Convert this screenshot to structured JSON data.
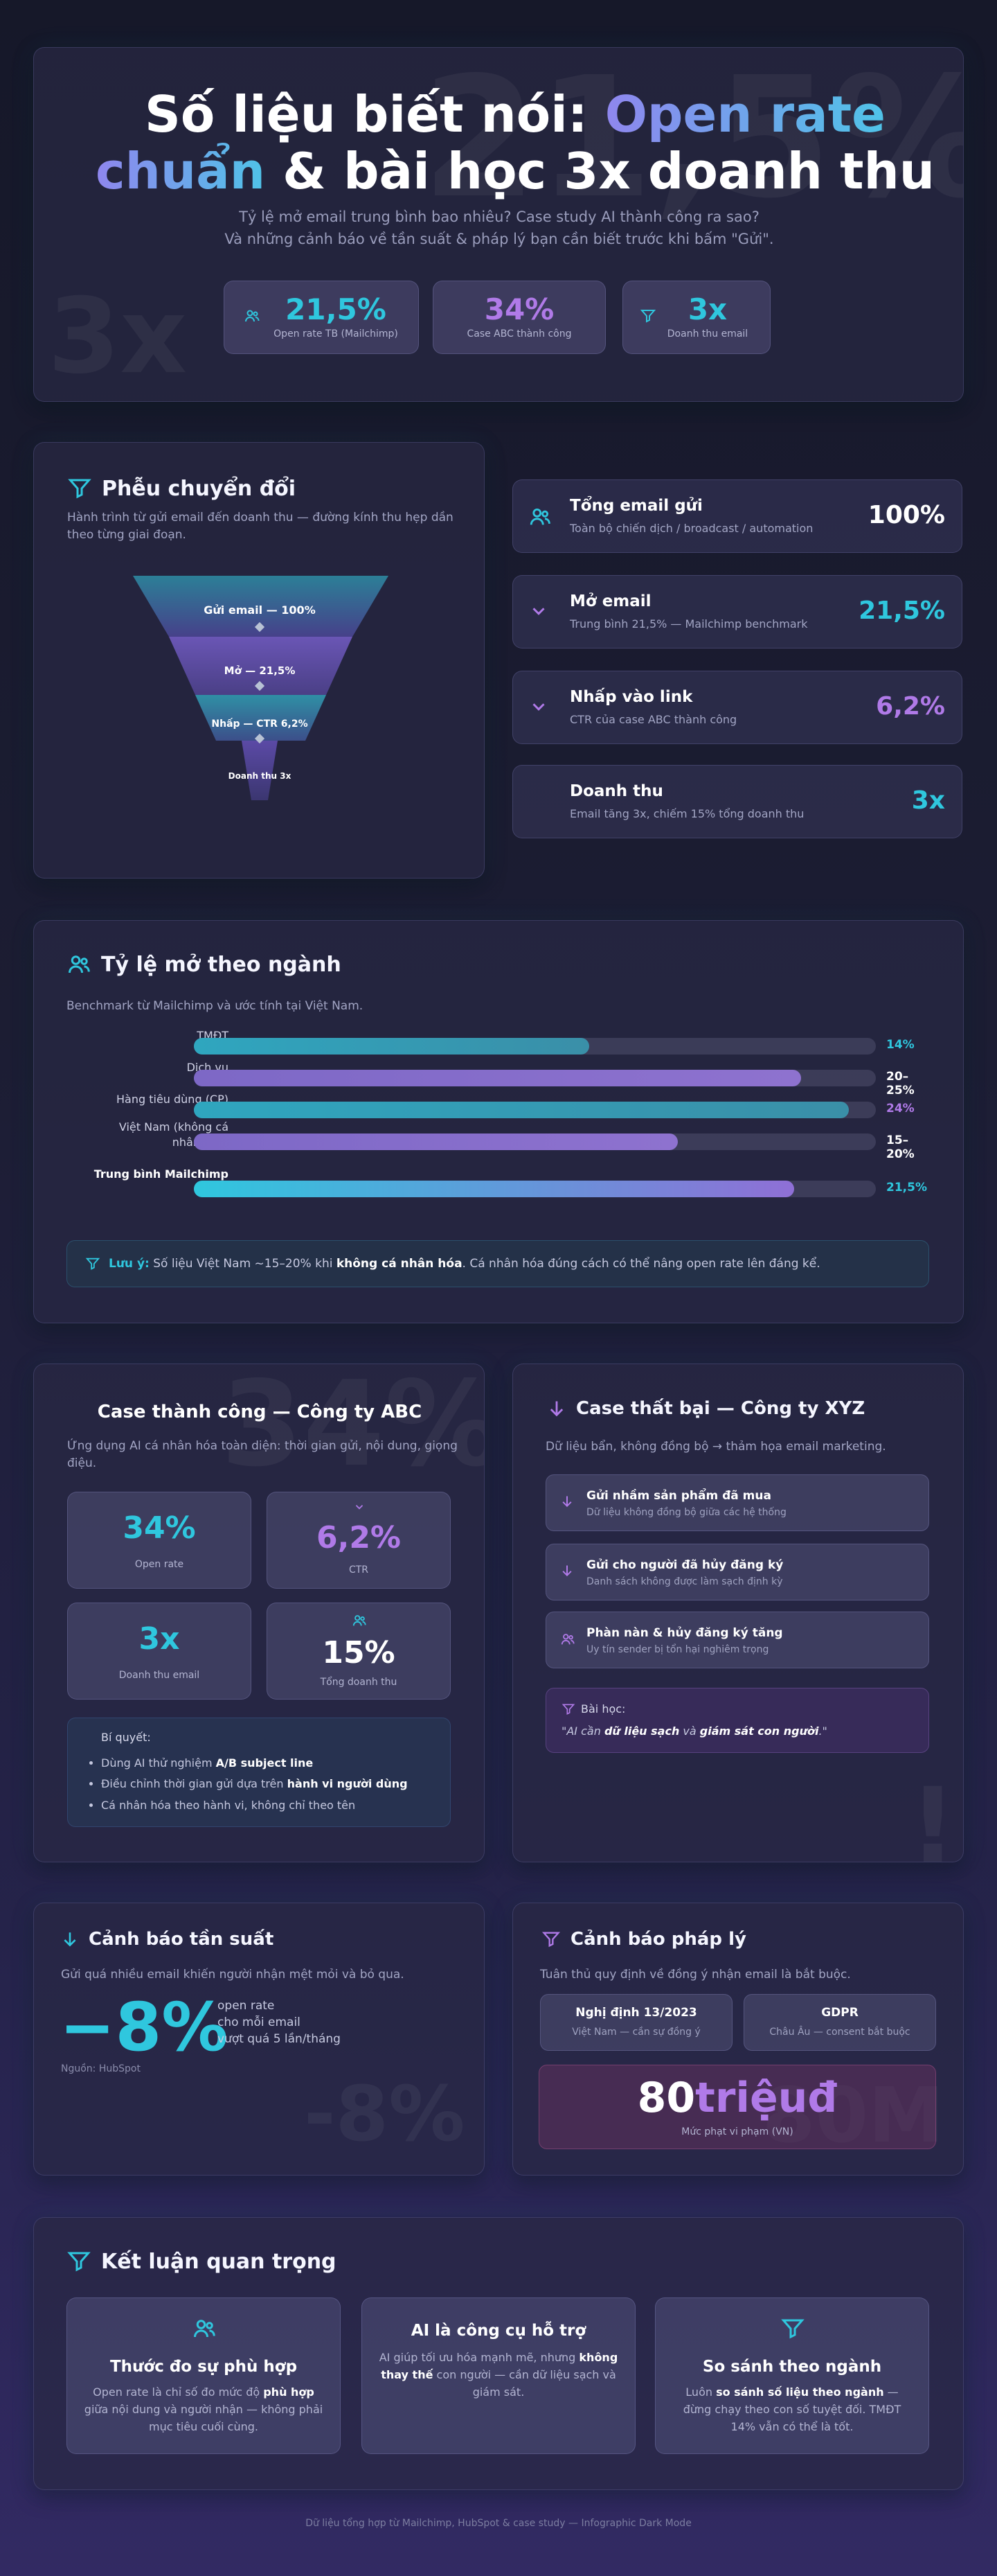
{
  "hero": {
    "ghost_big": "21,5%",
    "ghost_left": "3x",
    "title_line1_a": "Số liệu biết nói: ",
    "title_line1_b": "Open rate",
    "title_line2_a": "chuẩn",
    "title_line2_b": " & bài học 3x doanh thu",
    "subtitle_1": "Tỷ lệ mở email trung bình bao nhiêu? Case study AI thành công ra sao?",
    "subtitle_2": "Và những cảnh báo về tần suất & pháp lý bạn cần biết trước khi bấm \"Gửi\".",
    "stats": [
      {
        "value": "21,5%",
        "label": "Open rate TB (Mailchimp)",
        "icon": "users-icon"
      },
      {
        "value": "34%",
        "label": "Case ABC thành công"
      },
      {
        "value": "3x",
        "label": "Doanh thu email",
        "icon": "funnel-icon"
      }
    ]
  },
  "funnel": {
    "title": "Phễu chuyển đổi",
    "description": "Hành trình từ gửi email đến doanh thu — đường kính thu hẹp dần theo từng giai đoạn.",
    "levels": [
      "Gửi email — 100%",
      "Mở — 21,5%",
      "Nhấp — CTR 6,2%",
      "Doanh thu 3x"
    ],
    "stages": [
      {
        "title": "Tổng email gửi",
        "desc": "Toàn bộ chiến dịch / broadcast / automation",
        "value": "100%",
        "icon": "users-icon"
      },
      {
        "title": "Mở email",
        "desc": "Trung bình 21,5% — Mailchimp benchmark",
        "value": "21,5%",
        "icon": "chevron-down-icon"
      },
      {
        "title": "Nhấp vào link",
        "desc": "CTR của case ABC thành công",
        "value": "6,2%",
        "icon": "chevron-down-icon"
      },
      {
        "title": "Doanh thu",
        "desc": "Email tăng 3x, chiếm 15% tổng doanh thu",
        "value": "3x"
      }
    ]
  },
  "industry": {
    "title": "Tỷ lệ mở theo ngành",
    "description": "Benchmark từ Mailchimp và ước tính tại Việt Nam.",
    "rows": [
      {
        "label": "TMĐT",
        "value": "14%",
        "fill": 0.58,
        "color": "cyan"
      },
      {
        "label": "Dịch vụ",
        "value": "20–25%",
        "fill": 0.89,
        "color": "purple"
      },
      {
        "label": "Hàng tiêu dùng (CP)",
        "value": "24%",
        "fill": 0.96,
        "color": "cyan"
      },
      {
        "label": "Việt Nam (không cá nhân hóa)",
        "value": "15–20%",
        "fill": 0.71,
        "color": "purple"
      },
      {
        "label": "Trung bình Mailchimp",
        "value": "21,5%",
        "fill": 0.88,
        "color": "gradient"
      }
    ],
    "note_label": "Lưu ý:",
    "note_a": " Số liệu Việt Nam ~15–20% khi ",
    "note_b": "không cá nhân hóa",
    "note_c": ". Cá nhân hóa đúng cách có thể nâng open rate lên đáng kể."
  },
  "case_success": {
    "ghost": "34%",
    "title": "Case thành công — Công ty ABC",
    "description": "Ứng dụng AI cá nhân hóa toàn diện: thời gian gửi, nội dung, giọng điệu.",
    "metrics": [
      {
        "value": "34%",
        "label": "Open rate"
      },
      {
        "value": "6,2%",
        "label": "CTR"
      },
      {
        "value": "3x",
        "label": "Doanh thu email"
      },
      {
        "value": "15%",
        "label": "Tổng doanh thu"
      }
    ],
    "secret_title": "Bí quyết:",
    "secrets": [
      {
        "a": "Dùng AI thử nghiệm ",
        "b": "A/B subject line",
        "c": ""
      },
      {
        "a": "Điều chỉnh thời gian gửi dựa trên ",
        "b": "hành vi người dùng",
        "c": ""
      },
      {
        "a": "Cá nhân hóa theo hành vi, không chỉ theo tên",
        "b": "",
        "c": ""
      }
    ]
  },
  "case_fail": {
    "ghost": "!",
    "title": "Case thất bại — Công ty XYZ",
    "description": "Dữ liệu bẩn, không đồng bộ → thảm họa email marketing.",
    "items": [
      {
        "title": "Gửi nhầm sản phẩm đã mua",
        "desc": "Dữ liệu không đồng bộ giữa các hệ thống"
      },
      {
        "title": "Gửi cho người đã hủy đăng ký",
        "desc": "Danh sách không được làm sạch định kỳ"
      },
      {
        "title": "Phàn nàn & hủy đăng ký tăng",
        "desc": "Uy tín sender bị tổn hại nghiêm trọng"
      }
    ],
    "lesson_title": "Bài học:",
    "lesson_a": "\"AI cần ",
    "lesson_b": "dữ liệu sạch",
    "lesson_c": " và ",
    "lesson_d": "giám sát con người",
    "lesson_e": ".\""
  },
  "frequency": {
    "ghost": "-8%",
    "title": "Cảnh báo tần suất",
    "description": "Gửi quá nhiều email khiến người nhận mệt mỏi và bỏ qua.",
    "value": "−8%",
    "line1": "open rate",
    "line2": "cho mỗi email",
    "line3": "vượt quá 5 lần/tháng",
    "source": "Nguồn: HubSpot"
  },
  "legal": {
    "ghost": "80M",
    "title": "Cảnh báo pháp lý",
    "description": "Tuân thủ quy định về đồng ý nhận email là bắt buộc.",
    "laws": [
      {
        "title": "Nghị định 13/2023",
        "desc": "Việt Nam — cần sự đồng ý"
      },
      {
        "title": "GDPR",
        "desc": "Châu Âu — consent bắt buộc"
      }
    ],
    "fine_a": "80",
    "fine_b": "triệuđ",
    "fine_label": "Mức phạt vi phạm (VN)"
  },
  "conclusion": {
    "title": "Kết luận quan trọng",
    "cards": [
      {
        "title": "Thước đo sự phù hợp",
        "a": "Open rate là chỉ số đo mức độ ",
        "b": "phù hợp",
        "c": " giữa nội dung và người nhận — không phải mục tiêu cuối cùng."
      },
      {
        "title": "AI là công cụ hỗ trợ",
        "a": "AI giúp tối ưu hóa mạnh mẽ, nhưng ",
        "b": "không thay thế",
        "c": " con người — cần dữ liệu sạch và giám sát."
      },
      {
        "title": "So sánh theo ngành",
        "a": "Luôn ",
        "b": "so sánh số liệu theo ngành",
        "c": " — đừng chạy theo con số tuyệt đối. TMĐT 14% vẫn có thể là tốt."
      }
    ]
  },
  "footer": "Dữ liệu tổng hợp từ Mailchimp, HubSpot & case study — Infographic Dark Mode",
  "colors": {
    "cyan": "#2fc7de",
    "purple": "#b07ae8",
    "background": "#1a1b2e"
  }
}
